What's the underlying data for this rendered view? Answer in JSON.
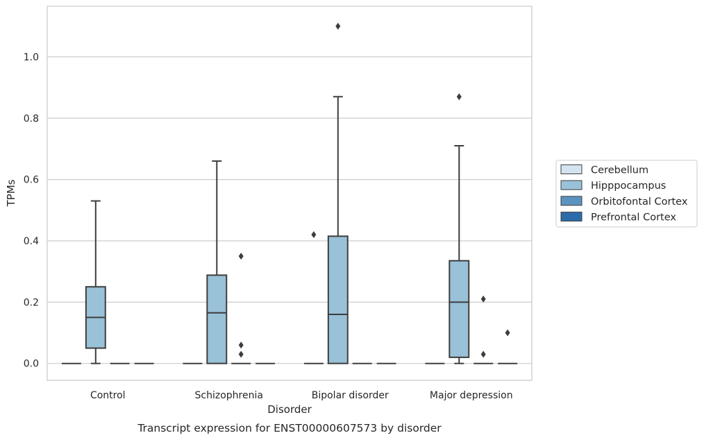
{
  "caption": "Transcript expression for ENST00000607573 by disorder",
  "chart_data": {
    "type": "box",
    "xlabel": "Disorder",
    "ylabel": "TPMs",
    "ylim": [
      -0.055,
      1.165
    ],
    "yticks": [
      0.0,
      0.2,
      0.4,
      0.6,
      0.8,
      1.0
    ],
    "ytick_labels": [
      "0.0",
      "0.2",
      "0.4",
      "0.6",
      "0.8",
      "1.0"
    ],
    "grid": "horizontal",
    "legend_placement": "right",
    "categories": [
      "Control",
      "Schizophrenia",
      "Bipolar disorder",
      "Major depression"
    ],
    "series": [
      {
        "name": "Cerebellum",
        "color": "#d4e3f1",
        "boxes": [
          {
            "q1": 0,
            "median": 0,
            "q3": 0,
            "whisker_low": 0,
            "whisker_high": 0,
            "outliers": []
          },
          {
            "q1": 0,
            "median": 0,
            "q3": 0,
            "whisker_low": 0,
            "whisker_high": 0,
            "outliers": []
          },
          {
            "q1": 0,
            "median": 0,
            "q3": 0,
            "whisker_low": 0,
            "whisker_high": 0,
            "outliers": []
          },
          {
            "q1": 0,
            "median": 0,
            "q3": 0,
            "whisker_low": 0,
            "whisker_high": 0,
            "outliers": []
          }
        ]
      },
      {
        "name": "Hipppocampus",
        "color": "#99c1d8",
        "boxes": [
          {
            "q1": 0.05,
            "median": 0.15,
            "q3": 0.25,
            "whisker_low": 0.0,
            "whisker_high": 0.53,
            "outliers": []
          },
          {
            "q1": 0.0,
            "median": 0.165,
            "q3": 0.288,
            "whisker_low": 0.0,
            "whisker_high": 0.66,
            "outliers": []
          },
          {
            "q1": 0.0,
            "median": 0.16,
            "q3": 0.415,
            "whisker_low": 0.0,
            "whisker_high": 0.87,
            "outliers": [
              1.1
            ]
          },
          {
            "q1": 0.02,
            "median": 0.2,
            "q3": 0.335,
            "whisker_low": 0.0,
            "whisker_high": 0.71,
            "outliers": [
              0.87
            ]
          }
        ]
      },
      {
        "name": "Orbitofontal Cortex",
        "color": "#5a93c0",
        "boxes": [
          {
            "q1": 0,
            "median": 0,
            "q3": 0,
            "whisker_low": 0,
            "whisker_high": 0,
            "outliers": []
          },
          {
            "q1": 0,
            "median": 0,
            "q3": 0,
            "whisker_low": 0,
            "whisker_high": 0,
            "outliers": [
              0.35,
              0.06,
              0.03
            ]
          },
          {
            "q1": 0,
            "median": 0,
            "q3": 0,
            "whisker_low": 0,
            "whisker_high": 0,
            "outliers": []
          },
          {
            "q1": 0,
            "median": 0,
            "q3": 0,
            "whisker_low": 0,
            "whisker_high": 0,
            "outliers": [
              0.21,
              0.03
            ]
          }
        ]
      },
      {
        "name": "Prefrontal Cortex",
        "color": "#2c6ba9",
        "boxes": [
          {
            "q1": 0,
            "median": 0,
            "q3": 0,
            "whisker_low": 0,
            "whisker_high": 0,
            "outliers": []
          },
          {
            "q1": 0,
            "median": 0,
            "q3": 0,
            "whisker_low": 0,
            "whisker_high": 0,
            "outliers": []
          },
          {
            "q1": 0,
            "median": 0,
            "q3": 0,
            "whisker_low": 0,
            "whisker_high": 0,
            "outliers": []
          },
          {
            "q1": 0,
            "median": 0,
            "q3": 0,
            "whisker_low": 0,
            "whisker_high": 0,
            "outliers": [
              0.1
            ]
          }
        ]
      }
    ],
    "extra_outliers": [
      {
        "category": 2,
        "series": 0,
        "value": 0.42
      }
    ]
  }
}
